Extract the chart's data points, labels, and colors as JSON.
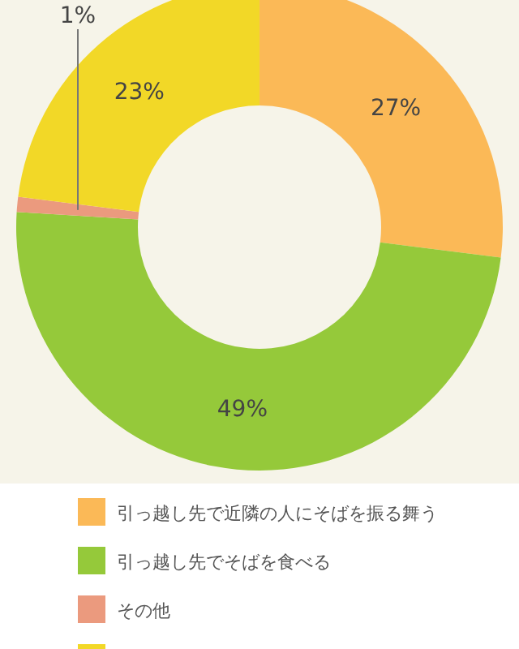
{
  "chart_data": {
    "type": "donut",
    "categories": [
      "引っ越し先で近隣の人にそばを振る舞う",
      "引っ越し先でそばを食べる",
      "その他",
      null
    ],
    "values": [
      27,
      49,
      1,
      23
    ],
    "colors": [
      "#fbb957",
      "#95c93a",
      "#eb9a7e",
      "#f2d827"
    ],
    "value_labels": [
      "27%",
      "49%",
      "1%",
      "23%"
    ],
    "legend": "bottom"
  }
}
